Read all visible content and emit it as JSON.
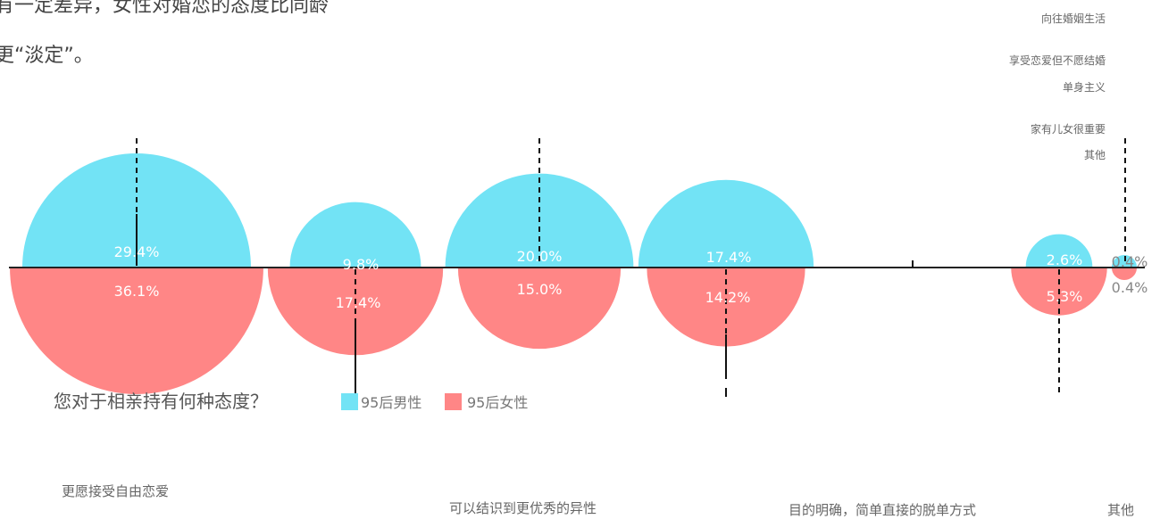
{
  "intro": {
    "line1": "有一定差异，女性对婚恋的态度比同龄",
    "line2": "更“淡定”。"
  },
  "question": "您对于相亲持有何种态度？",
  "top_labels": [
    "向往婚姻生活",
    "享受恋爱但不愿结婚",
    "单身主义",
    "家有儿女很重要",
    "其他"
  ],
  "bottom_labels": [
    "更愿接受自由恋爱",
    "可以结识到更优秀的异性",
    "目的明确，简单直接的脱单方式",
    "其他"
  ],
  "colors": {
    "male": "#72e3f5",
    "female": "#ff8686",
    "axis": "#222222"
  },
  "chart_data": {
    "type": "bar",
    "categories": [
      "",
      "",
      "",
      "",
      "",
      "",
      ""
    ],
    "series": [
      {
        "name": "95后男性",
        "values": [
          29.4,
          9.8,
          20.0,
          17.4,
          null,
          2.6,
          0.4
        ]
      },
      {
        "name": "95后女性",
        "values": [
          36.1,
          17.4,
          15.0,
          14.2,
          null,
          5.3,
          0.4
        ]
      }
    ],
    "value_labels": {
      "male": [
        "29.4%",
        "9.8%",
        "20.0%",
        "17.4%",
        "",
        "2.6%",
        "0.4%"
      ],
      "female": [
        "36.1%",
        "17.4%",
        "15.0%",
        "14.2%",
        "",
        "5.3%",
        "0.4%"
      ]
    },
    "legend": "bottom"
  }
}
